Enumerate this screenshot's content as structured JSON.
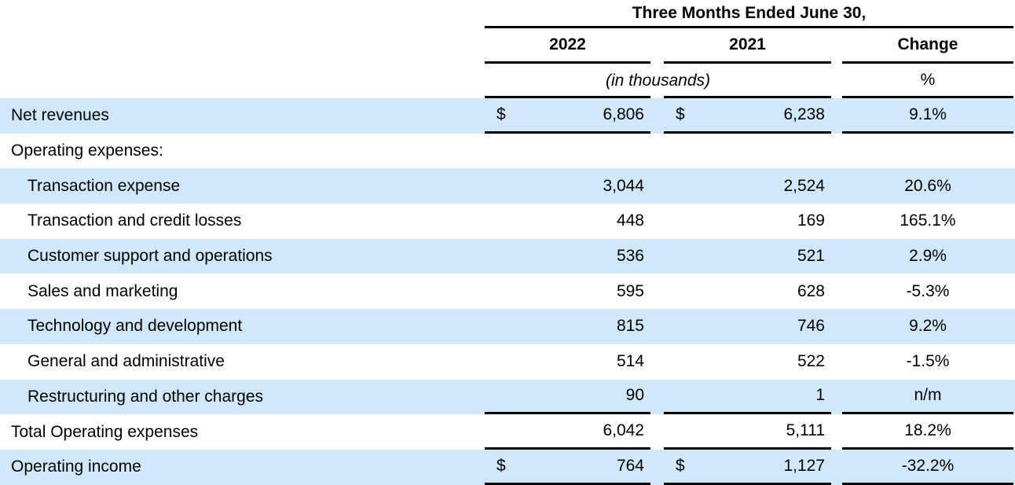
{
  "page": {
    "background": "#ffffff"
  },
  "table": {
    "title": "Three Months Ended June 30,",
    "columns": {
      "year1": "2022",
      "year2": "2021",
      "change": "Change"
    },
    "units_note": "(in thousands)",
    "change_unit": "%",
    "style": {
      "shaded_row_color": "#cfe8fa",
      "rule_color": "#000000",
      "text_color": "#000000"
    },
    "rows": [
      {
        "label": "Net revenues",
        "indent": false,
        "shaded": true,
        "cur1": "$",
        "v1": "6,806",
        "cur2": "$",
        "v2": "6,238",
        "change": "9.1%",
        "line_below": true
      },
      {
        "label": "Operating expenses:",
        "indent": false,
        "shaded": false,
        "cur1": "",
        "v1": "",
        "cur2": "",
        "v2": "",
        "change": "",
        "line_below": false
      },
      {
        "label": "Transaction expense",
        "indent": true,
        "shaded": true,
        "cur1": "",
        "v1": "3,044",
        "cur2": "",
        "v2": "2,524",
        "change": "20.6%",
        "line_below": false
      },
      {
        "label": "Transaction and credit losses",
        "indent": true,
        "shaded": false,
        "cur1": "",
        "v1": "448",
        "cur2": "",
        "v2": "169",
        "change": "165.1%",
        "line_below": false
      },
      {
        "label": "Customer support and operations",
        "indent": true,
        "shaded": true,
        "cur1": "",
        "v1": "536",
        "cur2": "",
        "v2": "521",
        "change": "2.9%",
        "line_below": false
      },
      {
        "label": "Sales and marketing",
        "indent": true,
        "shaded": false,
        "cur1": "",
        "v1": "595",
        "cur2": "",
        "v2": "628",
        "change": "-5.3%",
        "line_below": false
      },
      {
        "label": "Technology and development",
        "indent": true,
        "shaded": true,
        "cur1": "",
        "v1": "815",
        "cur2": "",
        "v2": "746",
        "change": "9.2%",
        "line_below": false
      },
      {
        "label": "General and administrative",
        "indent": true,
        "shaded": false,
        "cur1": "",
        "v1": "514",
        "cur2": "",
        "v2": "522",
        "change": "-1.5%",
        "line_below": false
      },
      {
        "label": "Restructuring and other charges",
        "indent": true,
        "shaded": true,
        "cur1": "",
        "v1": "90",
        "cur2": "",
        "v2": "1",
        "change": "n/m",
        "line_below": true
      },
      {
        "label": "Total Operating expenses",
        "indent": false,
        "shaded": false,
        "cur1": "",
        "v1": "6,042",
        "cur2": "",
        "v2": "5,111",
        "change": "18.2%",
        "line_below": true
      },
      {
        "label": "Operating income",
        "indent": false,
        "shaded": true,
        "cur1": "$",
        "v1": "764",
        "cur2": "$",
        "v2": "1,127",
        "change": "-32.2%",
        "line_below": true
      }
    ]
  }
}
